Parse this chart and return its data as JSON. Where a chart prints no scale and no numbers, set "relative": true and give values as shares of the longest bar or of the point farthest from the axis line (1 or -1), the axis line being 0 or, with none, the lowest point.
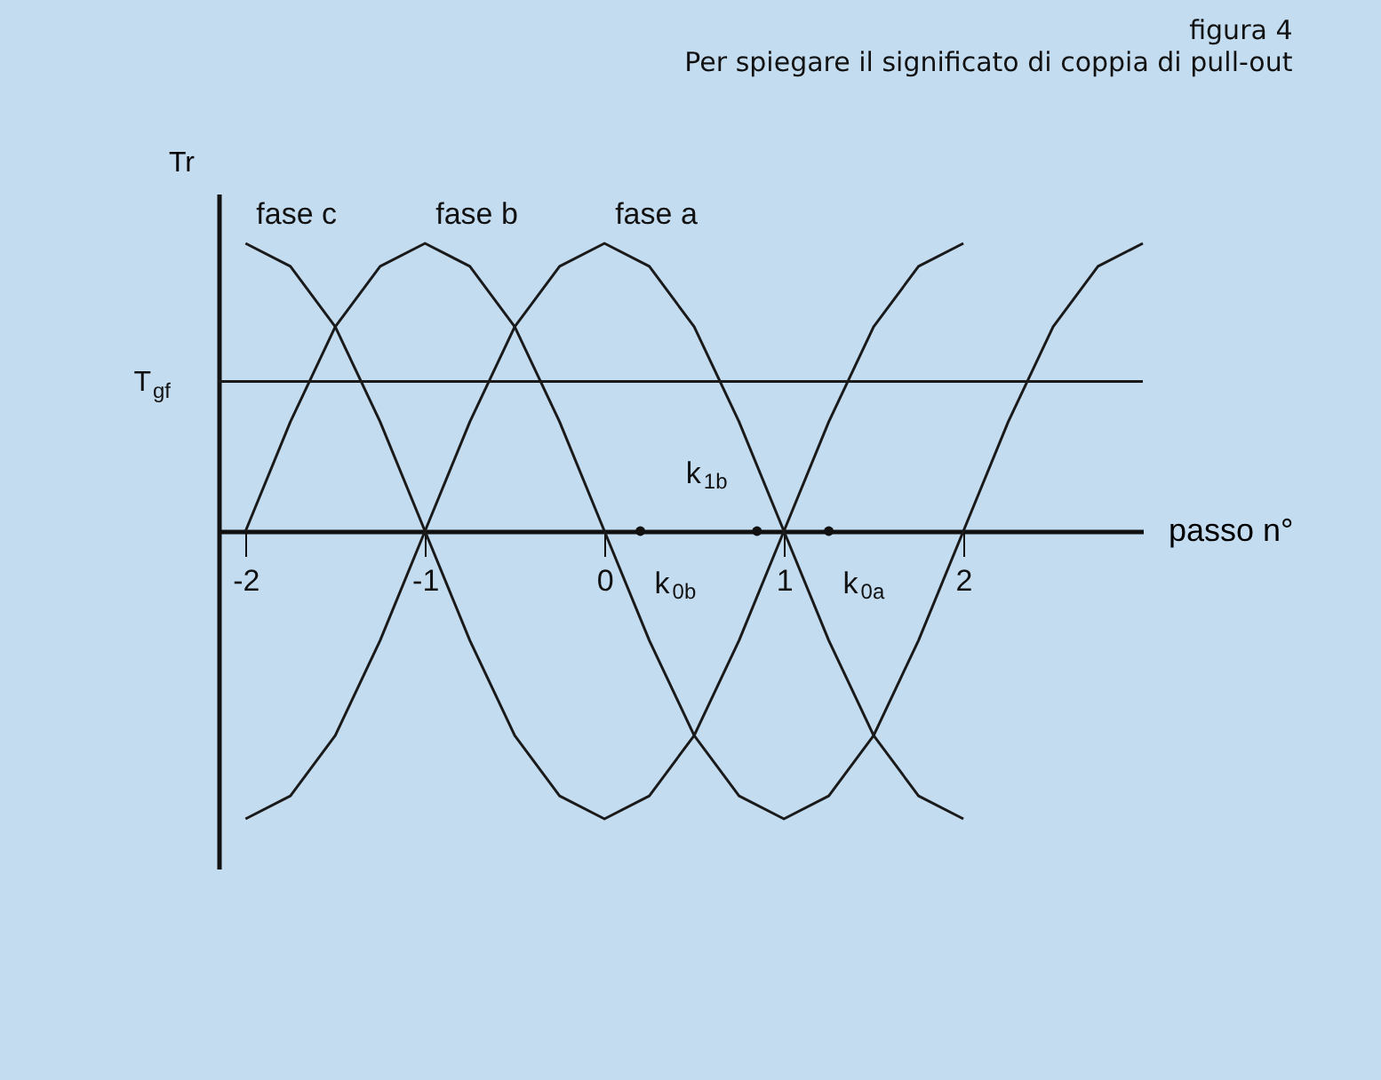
{
  "chart_data": {
    "type": "line",
    "title": "figura 4",
    "subtitle": "Per spiegare il significato di coppia di pull-out",
    "xlabel": "passo n°",
    "ylabel": "Tr",
    "relative": true,
    "xlim": [
      -2.15,
      3
    ],
    "xticks": [
      -2,
      -1,
      0,
      1,
      2
    ],
    "grid": false,
    "legend": false,
    "marker": "none",
    "line_style": "solid",
    "series": [
      {
        "name": "fase c",
        "color": "#1a1a1a",
        "x": [
          -2,
          -1.75,
          -1.5,
          -1.25,
          -1,
          -0.75,
          -0.5,
          -0.25,
          0,
          0.25,
          0.5,
          0.75,
          1,
          1.25,
          1.5,
          1.75,
          2
        ],
        "values": [
          1,
          0.92,
          0.71,
          0.38,
          0,
          -0.38,
          -0.71,
          -0.92,
          -1,
          -0.92,
          -0.71,
          -0.38,
          0,
          0.38,
          0.71,
          0.92,
          1
        ]
      },
      {
        "name": "fase b",
        "color": "#1a1a1a",
        "x": [
          -2,
          -1.75,
          -1.5,
          -1.25,
          -1,
          -0.75,
          -0.5,
          -0.25,
          0,
          0.25,
          0.5,
          0.75,
          1,
          1.25,
          1.5,
          1.75,
          2,
          2.25,
          2.5,
          2.75,
          3
        ],
        "values": [
          0,
          0.38,
          0.71,
          0.92,
          1,
          0.92,
          0.71,
          0.38,
          0,
          -0.38,
          -0.71,
          -0.92,
          -1,
          -0.92,
          -0.71,
          -0.38,
          0,
          0.38,
          0.71,
          0.92,
          1
        ]
      },
      {
        "name": "fase a",
        "color": "#1a1a1a",
        "x": [
          -2,
          -1.75,
          -1.5,
          -1.25,
          -1,
          -0.75,
          -0.5,
          -0.25,
          0,
          0.25,
          0.5,
          0.75,
          1,
          1.25,
          1.5,
          1.75,
          2
        ],
        "values": [
          -1,
          -0.92,
          -0.71,
          -0.38,
          0,
          0.38,
          0.71,
          0.92,
          1,
          0.92,
          0.71,
          0.38,
          0,
          -0.38,
          -0.71,
          -0.92,
          -1
        ]
      }
    ],
    "ref_lines": [
      {
        "axis": "y",
        "value": 0.52,
        "label": "T$_{gf}$",
        "color": "#1a1a1a"
      }
    ],
    "annotations": [
      {
        "text": "k$_{0b}$",
        "x": 0.2,
        "y": 0
      },
      {
        "text": "k$_{1b}$",
        "x": 0.85,
        "y": 0
      },
      {
        "text": "k$_{0a}$",
        "x": 1.25,
        "y": 0
      }
    ]
  }
}
